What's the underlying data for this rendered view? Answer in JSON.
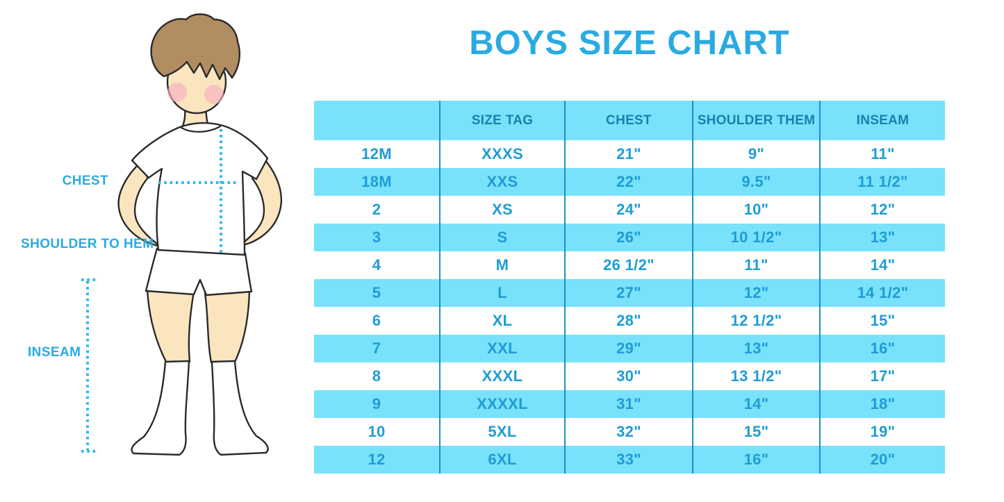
{
  "title": "BOYS SIZE CHART",
  "diagram": {
    "chest_label": "CHEST",
    "shoulder_to_hem_label": "SHOULDER TO HEM",
    "inseam_label": "INSEAM"
  },
  "colors": {
    "accent_blue": "#29abe2",
    "row_cyan": "#78e2fa",
    "column_divider": "#1e90c0",
    "header_text": "#1b7fae",
    "cell_text": "#1f9cd4",
    "dotted_line": "#29b7ea",
    "skin": "#fbe5bf",
    "hair": "#b28d62",
    "cheek_pink": "#f5afc0",
    "outline": "#2a2a2a"
  },
  "chart_data": {
    "type": "table",
    "title": "BOYS SIZE CHART",
    "columns": [
      "",
      "SIZE TAG",
      "CHEST",
      "SHOULDER THEM",
      "INSEAM"
    ],
    "rows": [
      [
        "12M",
        "XXXS",
        "21\"",
        "9\"",
        "11\""
      ],
      [
        "18M",
        "XXS",
        "22\"",
        "9.5\"",
        "11 1/2\""
      ],
      [
        "2",
        "XS",
        "24\"",
        "10\"",
        "12\""
      ],
      [
        "3",
        "S",
        "26\"",
        "10 1/2\"",
        "13\""
      ],
      [
        "4",
        "M",
        "26 1/2\"",
        "11\"",
        "14\""
      ],
      [
        "5",
        "L",
        "27\"",
        "12\"",
        "14 1/2\""
      ],
      [
        "6",
        "XL",
        "28\"",
        "12 1/2\"",
        "15\""
      ],
      [
        "7",
        "XXL",
        "29\"",
        "13\"",
        "16\""
      ],
      [
        "8",
        "XXXL",
        "30\"",
        "13 1/2\"",
        "17\""
      ],
      [
        "9",
        "XXXXL",
        "31\"",
        "14\"",
        "18\""
      ],
      [
        "10",
        "5XL",
        "32\"",
        "15\"",
        "19\""
      ],
      [
        "12",
        "6XL",
        "33\"",
        "16\"",
        "20\""
      ]
    ]
  }
}
